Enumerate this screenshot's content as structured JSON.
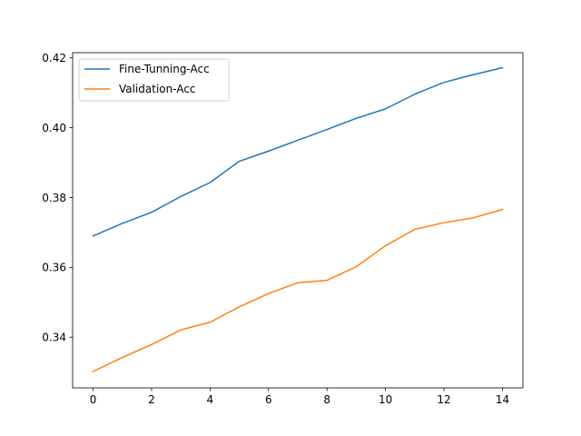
{
  "chart_data": {
    "type": "line",
    "title": "",
    "xlabel": "",
    "ylabel": "",
    "x": [
      0,
      1,
      2,
      3,
      4,
      5,
      6,
      7,
      8,
      9,
      10,
      11,
      12,
      13,
      14
    ],
    "xlim": [
      -0.7,
      14.7
    ],
    "ylim": [
      0.3255,
      0.4215
    ],
    "xticks": [
      0,
      2,
      4,
      6,
      8,
      10,
      12,
      14
    ],
    "yticks": [
      0.34,
      0.36,
      0.38,
      0.4,
      0.42
    ],
    "xtick_labels": [
      "0",
      "2",
      "4",
      "6",
      "8",
      "10",
      "12",
      "14"
    ],
    "ytick_labels": [
      "0.34",
      "0.36",
      "0.38",
      "0.40",
      "0.42"
    ],
    "grid": false,
    "legend_position": "upper-left",
    "series": [
      {
        "name": "Fine-Tunning-Acc",
        "color": "#1f77b4",
        "values": [
          0.369,
          0.3726,
          0.3758,
          0.3803,
          0.3843,
          0.3904,
          0.3933,
          0.3964,
          0.3995,
          0.4027,
          0.4054,
          0.4096,
          0.413,
          0.4152,
          0.4172
        ]
      },
      {
        "name": "Validation-Acc",
        "color": "#ff7f0e",
        "values": [
          0.3302,
          0.3342,
          0.3379,
          0.3421,
          0.3443,
          0.3487,
          0.3525,
          0.3556,
          0.3563,
          0.3602,
          0.3662,
          0.3709,
          0.3728,
          0.3742,
          0.3766
        ]
      }
    ]
  }
}
